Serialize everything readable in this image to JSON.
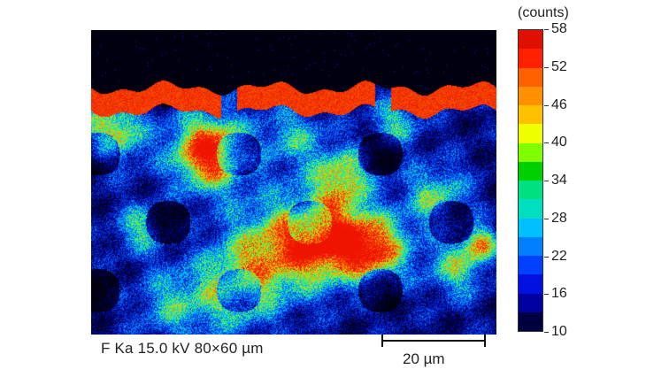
{
  "image": {
    "caption": "F Ka 15.0 kV 80×60 µm",
    "scale_bar_label": "20 µm"
  },
  "colorbar": {
    "unit": "(counts)",
    "ticks": [
      "58",
      "52",
      "46",
      "40",
      "34",
      "28",
      "22",
      "16",
      "10"
    ],
    "colors": [
      "#e01000",
      "#ff2000",
      "#ff6000",
      "#ff9000",
      "#ffc000",
      "#f0ff00",
      "#80ff00",
      "#00d000",
      "#00e080",
      "#00e0c0",
      "#00c0ff",
      "#0080ff",
      "#0040ff",
      "#0010e0",
      "#0000a0",
      "#000040"
    ]
  },
  "map_palette": {
    "background": "#000010",
    "low": "#0000a0",
    "mid_low": "#0060ff",
    "mid": "#00d0ff",
    "mid_high": "#40ff40",
    "high": "#ffc000",
    "top": "#ff2000"
  }
}
